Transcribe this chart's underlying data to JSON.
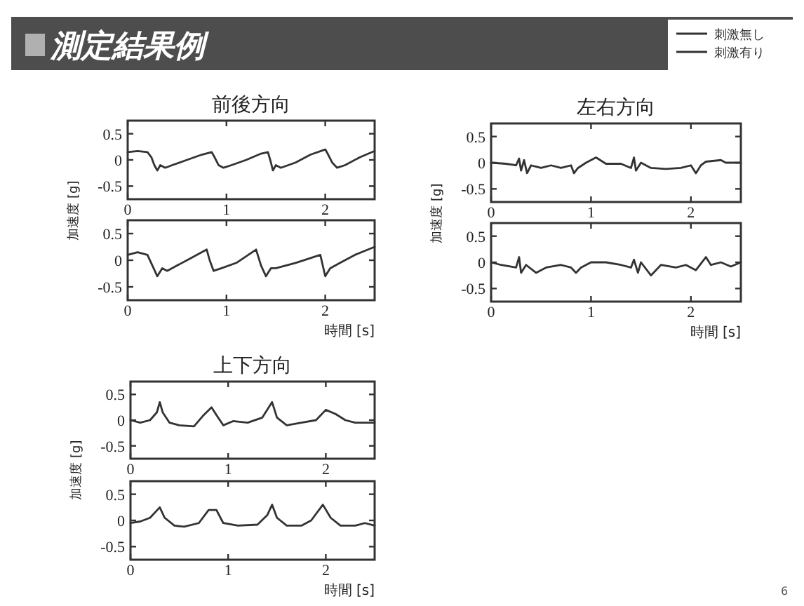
{
  "chart_data": [
    {
      "type": "other",
      "title": "測定結果例",
      "annotations": [
        "6"
      ]
    },
    {
      "type": "line",
      "title": "前後方向",
      "ylabel": "加速度 [g]",
      "legend": "top right",
      "xlim": [
        0,
        2.5
      ],
      "ylim": [
        -0.75,
        0.75
      ],
      "xticks": [
        0,
        1,
        2
      ],
      "yticks": [
        -0.5,
        0,
        0.5
      ],
      "series": [
        {
          "name": "刺激無し",
          "color": "#333333",
          "x": [
            0,
            0.1,
            0.2,
            0.24,
            0.27,
            0.3,
            0.33,
            0.38,
            0.45,
            0.6,
            0.75,
            0.85,
            0.88,
            0.92,
            0.97,
            1.05,
            1.2,
            1.35,
            1.42,
            1.45,
            1.47,
            1.5,
            1.55,
            1.7,
            1.85,
            2.0,
            2.03,
            2.07,
            2.12,
            2.2,
            2.35,
            2.5
          ],
          "values": [
            0.15,
            0.17,
            0.15,
            0.05,
            -0.1,
            -0.2,
            -0.1,
            -0.15,
            -0.1,
            0,
            0.1,
            0.15,
            0.05,
            -0.1,
            -0.15,
            -0.1,
            0,
            0.12,
            0.15,
            -0.05,
            -0.2,
            -0.1,
            -0.15,
            -0.05,
            0.1,
            0.2,
            0.1,
            -0.05,
            -0.15,
            -0.1,
            0.05,
            0.17
          ]
        }
      ]
    },
    {
      "type": "line",
      "xlabel": "時間 [s]",
      "legend": "top right",
      "xlim": [
        0,
        2.5
      ],
      "ylim": [
        -0.75,
        0.75
      ],
      "xticks": [
        0,
        1,
        2
      ],
      "yticks": [
        -0.5,
        0,
        0.5
      ],
      "series": [
        {
          "name": "刺激有り",
          "color": "#333333",
          "x": [
            0,
            0.1,
            0.2,
            0.25,
            0.3,
            0.35,
            0.4,
            0.5,
            0.65,
            0.8,
            0.83,
            0.87,
            0.95,
            1.1,
            1.3,
            1.35,
            1.4,
            1.45,
            1.5,
            1.7,
            1.95,
            2.0,
            2.05,
            2.15,
            2.3,
            2.5
          ],
          "values": [
            0.1,
            0.15,
            0.1,
            -0.1,
            -0.3,
            -0.15,
            -0.2,
            -0.1,
            0.05,
            0.2,
            0,
            -0.2,
            -0.15,
            -0.05,
            0.2,
            -0.1,
            -0.3,
            -0.15,
            -0.15,
            -0.05,
            0.1,
            -0.3,
            -0.15,
            -0.05,
            0.1,
            0.25
          ]
        }
      ]
    },
    {
      "type": "line",
      "title": "左右方向",
      "ylabel": "加速度 [g]",
      "xlim": [
        0,
        2.5
      ],
      "ylim": [
        -0.75,
        0.75
      ],
      "xticks": [
        0,
        1,
        2
      ],
      "yticks": [
        -0.5,
        0,
        0.5
      ],
      "series": [
        {
          "color": "#333333",
          "x": [
            0,
            0.15,
            0.25,
            0.28,
            0.3,
            0.33,
            0.36,
            0.4,
            0.5,
            0.6,
            0.7,
            0.8,
            0.83,
            0.87,
            0.95,
            1.05,
            1.15,
            1.3,
            1.4,
            1.43,
            1.45,
            1.5,
            1.6,
            1.75,
            1.9,
            2.0,
            2.05,
            2.1,
            2.15,
            2.3,
            2.35,
            2.5
          ],
          "values": [
            0,
            -0.02,
            -0.05,
            0.08,
            -0.15,
            0.05,
            -0.2,
            -0.05,
            -0.1,
            -0.05,
            -0.1,
            -0.05,
            -0.2,
            -0.1,
            0,
            0.1,
            -0.02,
            -0.02,
            -0.1,
            0.1,
            -0.15,
            0,
            -0.1,
            -0.12,
            -0.1,
            -0.05,
            -0.2,
            -0.05,
            0.02,
            0.05,
            0,
            0
          ]
        }
      ]
    },
    {
      "type": "line",
      "xlabel": "時間 [s]",
      "xlim": [
        0,
        2.5
      ],
      "ylim": [
        -0.75,
        0.75
      ],
      "xticks": [
        0,
        1,
        2
      ],
      "yticks": [
        -0.5,
        0,
        0.5
      ],
      "series": [
        {
          "color": "#333333",
          "x": [
            0,
            0.1,
            0.25,
            0.28,
            0.3,
            0.35,
            0.45,
            0.55,
            0.7,
            0.8,
            0.85,
            0.9,
            1.0,
            1.15,
            1.3,
            1.4,
            1.43,
            1.47,
            1.5,
            1.6,
            1.7,
            1.85,
            1.95,
            2.05,
            2.15,
            2.2,
            2.3,
            2.4,
            2.5
          ],
          "values": [
            0,
            -0.05,
            -0.1,
            0.1,
            -0.2,
            -0.05,
            -0.2,
            -0.1,
            -0.05,
            -0.1,
            -0.2,
            -0.1,
            0,
            0,
            -0.05,
            -0.1,
            0.05,
            -0.2,
            0,
            -0.25,
            -0.05,
            -0.1,
            -0.05,
            -0.15,
            0.1,
            -0.05,
            0,
            -0.08,
            0
          ]
        }
      ]
    },
    {
      "type": "line",
      "title": "上下方向",
      "ylabel": "加速度 [g]",
      "xlim": [
        0,
        2.5
      ],
      "ylim": [
        -0.75,
        0.75
      ],
      "xticks": [
        0,
        1,
        2
      ],
      "yticks": [
        -0.5,
        0,
        0.5
      ],
      "series": [
        {
          "color": "#333333",
          "x": [
            0,
            0.1,
            0.2,
            0.27,
            0.3,
            0.33,
            0.4,
            0.5,
            0.65,
            0.75,
            0.83,
            0.88,
            0.95,
            1.05,
            1.2,
            1.35,
            1.45,
            1.5,
            1.6,
            1.75,
            1.9,
            2.0,
            2.1,
            2.2,
            2.3,
            2.5
          ],
          "values": [
            0,
            -0.05,
            0,
            0.15,
            0.35,
            0.15,
            -0.05,
            -0.1,
            -0.12,
            0.1,
            0.25,
            0.1,
            -0.1,
            -0.02,
            -0.05,
            0.05,
            0.35,
            0.05,
            -0.1,
            -0.05,
            0,
            0.2,
            0.12,
            0,
            -0.05,
            -0.05
          ]
        }
      ]
    },
    {
      "type": "line",
      "xlabel": "時間 [s]",
      "xlim": [
        0,
        2.5
      ],
      "ylim": [
        -0.75,
        0.75
      ],
      "xticks": [
        0,
        1,
        2
      ],
      "yticks": [
        -0.5,
        0,
        0.5
      ],
      "series": [
        {
          "color": "#333333",
          "x": [
            0,
            0.1,
            0.2,
            0.3,
            0.35,
            0.45,
            0.55,
            0.7,
            0.8,
            0.88,
            0.95,
            1.1,
            1.3,
            1.4,
            1.45,
            1.5,
            1.6,
            1.75,
            1.85,
            1.97,
            2.05,
            2.15,
            2.3,
            2.4,
            2.5
          ],
          "values": [
            -0.05,
            -0.02,
            0.05,
            0.25,
            0.05,
            -0.1,
            -0.12,
            -0.05,
            0.2,
            0.2,
            -0.05,
            -0.1,
            -0.08,
            0.1,
            0.3,
            0.05,
            -0.1,
            -0.1,
            0,
            0.3,
            0.05,
            -0.1,
            -0.1,
            -0.05,
            -0.1
          ]
        }
      ]
    }
  ]
}
